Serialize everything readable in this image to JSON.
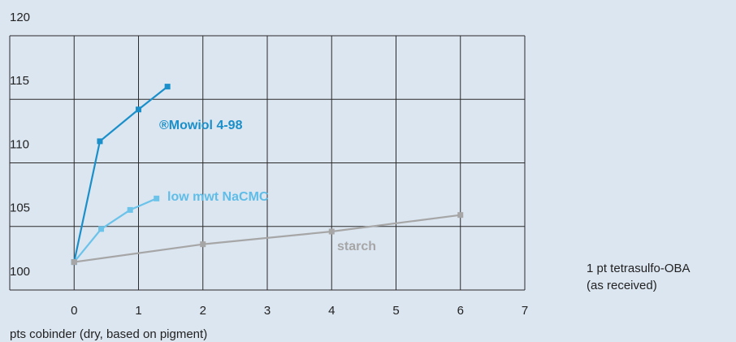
{
  "chart_data": {
    "type": "line",
    "x_label": "pts cobinder (dry, based on pigment)",
    "annotations": [
      "1 pt tetrasulfo-OBA",
      "(as received)"
    ],
    "xlim": [
      -1,
      7
    ],
    "xticks": [
      0,
      1,
      2,
      3,
      4,
      5,
      6,
      7
    ],
    "ylim": [
      100,
      120
    ],
    "yticks": [
      100,
      105,
      110,
      115,
      120
    ],
    "grid": true,
    "series": [
      {
        "name": "®Mowiol 4-98",
        "color": "#1a8fc9",
        "x": [
          0,
          0.4,
          1,
          1.45
        ],
        "values": [
          102.2,
          111.7,
          114.2,
          116.0
        ]
      },
      {
        "name": "low mwt NaCMC",
        "color": "#6cc3ea",
        "x": [
          0,
          0.42,
          0.87,
          1.28
        ],
        "values": [
          102.2,
          104.8,
          106.3,
          107.2
        ]
      },
      {
        "name": "starch",
        "color": "#a6a6a6",
        "x": [
          0,
          2,
          4,
          6
        ],
        "values": [
          102.2,
          103.6,
          104.6,
          105.9
        ]
      }
    ]
  }
}
